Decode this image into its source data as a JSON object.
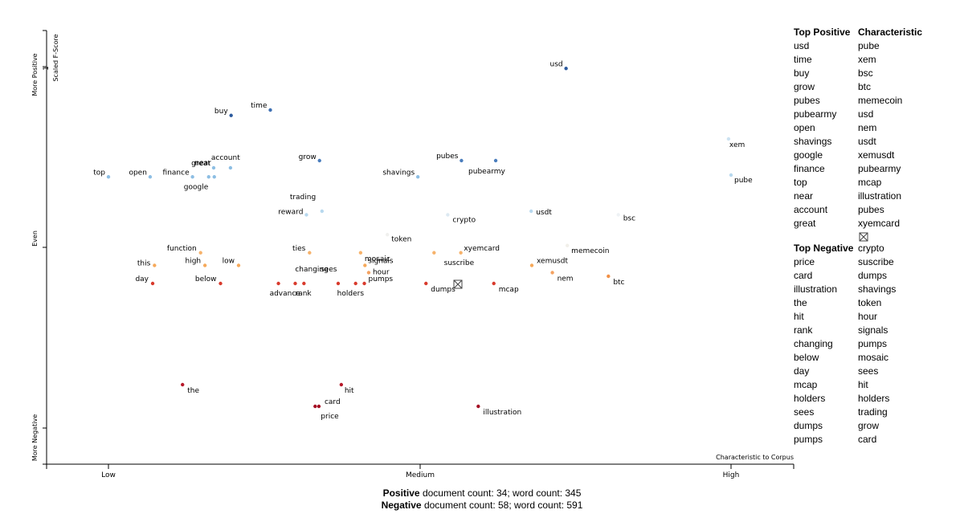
{
  "chart_data": {
    "type": "scatter",
    "xlabel": "Characteristic to Corpus",
    "ylabel": "Scaled F-Score",
    "x_ticks": [
      "Low",
      "Medium",
      "High"
    ],
    "y_ticks": {
      "top_value": "1"
    },
    "y_axis_words": [
      "More Positive",
      "Even",
      "More Negative"
    ],
    "xlim": [
      0,
      1
    ],
    "ylim": [
      0,
      1
    ],
    "points": [
      {
        "term": "usd",
        "x": 0.735,
        "y": 0.995,
        "color": "#2c5a9e"
      },
      {
        "term": "time",
        "x": 0.26,
        "y": 0.88,
        "color": "#3d6fb2"
      },
      {
        "term": "buy",
        "x": 0.197,
        "y": 0.865,
        "color": "#2c5a9e"
      },
      {
        "term": "grow",
        "x": 0.339,
        "y": 0.74,
        "color": "#4a7dbd"
      },
      {
        "term": "pubes",
        "x": 0.567,
        "y": 0.74,
        "color": "#4a7dbd"
      },
      {
        "term": "pubearmy",
        "x": 0.622,
        "y": 0.74,
        "color": "#4a7dbd"
      },
      {
        "term": "great",
        "x": 0.169,
        "y": 0.72,
        "color": "#8dbee3"
      },
      {
        "term": "near",
        "x": 0.17,
        "y": 0.695,
        "color": "#8dbee3"
      },
      {
        "term": "account",
        "x": 0.196,
        "y": 0.72,
        "color": "#8dbee3"
      },
      {
        "term": "top",
        "x": 0.0,
        "y": 0.695,
        "color": "#8dbee3"
      },
      {
        "term": "open",
        "x": 0.067,
        "y": 0.695,
        "color": "#8dbee3"
      },
      {
        "term": "finance",
        "x": 0.135,
        "y": 0.695,
        "color": "#8dbee3"
      },
      {
        "term": "google",
        "x": 0.161,
        "y": 0.695,
        "color": "#8dbee3"
      },
      {
        "term": "shavings",
        "x": 0.497,
        "y": 0.695,
        "color": "#8dbee3"
      },
      {
        "term": "trading",
        "x": 0.343,
        "y": 0.6,
        "color": "#b7d8ee"
      },
      {
        "term": "reward",
        "x": 0.318,
        "y": 0.59,
        "color": "#b7d8ee"
      },
      {
        "term": "crypto",
        "x": 0.545,
        "y": 0.59,
        "color": "#dde9f2"
      },
      {
        "term": "usdt",
        "x": 0.679,
        "y": 0.6,
        "color": "#b7d8ee"
      },
      {
        "term": "bsc",
        "x": 0.819,
        "y": 0.59,
        "color": "#eef2f5"
      },
      {
        "term": "xem",
        "x": 0.996,
        "y": 0.8,
        "color": "#cce2f1"
      },
      {
        "term": "pube",
        "x": 1.0,
        "y": 0.7,
        "color": "#b7d8ee"
      },
      {
        "term": "token",
        "x": 0.448,
        "y": 0.535,
        "color": "#f0f0ee"
      },
      {
        "term": "memecoin",
        "x": 0.737,
        "y": 0.505,
        "color": "#f1efe9"
      },
      {
        "term": "function",
        "x": 0.148,
        "y": 0.485,
        "color": "#f6b26b"
      },
      {
        "term": "ties",
        "x": 0.323,
        "y": 0.485,
        "color": "#f6b26b"
      },
      {
        "term": "mosaic",
        "x": 0.405,
        "y": 0.485,
        "color": "#f6b26b"
      },
      {
        "term": "xyemcard",
        "x": 0.523,
        "y": 0.485,
        "color": "#f6b26b"
      },
      {
        "term": "suscribe",
        "x": 0.566,
        "y": 0.485,
        "color": "#f6b26b"
      },
      {
        "term": "this",
        "x": 0.074,
        "y": 0.45,
        "color": "#f6a95a"
      },
      {
        "term": "high",
        "x": 0.155,
        "y": 0.45,
        "color": "#f6a95a"
      },
      {
        "term": "low",
        "x": 0.209,
        "y": 0.45,
        "color": "#f6a95a"
      },
      {
        "term": "signals",
        "x": 0.412,
        "y": 0.45,
        "color": "#f6a95a"
      },
      {
        "term": "xemusdt",
        "x": 0.68,
        "y": 0.45,
        "color": "#f6a95a"
      },
      {
        "term": "hour",
        "x": 0.418,
        "y": 0.43,
        "color": "#f4a261"
      },
      {
        "term": "nem",
        "x": 0.713,
        "y": 0.43,
        "color": "#f4a261"
      },
      {
        "term": "btc",
        "x": 0.803,
        "y": 0.42,
        "color": "#f29045"
      },
      {
        "term": "day",
        "x": 0.071,
        "y": 0.4,
        "color": "#d83a2c"
      },
      {
        "term": "below",
        "x": 0.18,
        "y": 0.4,
        "color": "#d83a2c"
      },
      {
        "term": "advance",
        "x": 0.273,
        "y": 0.4,
        "color": "#d83a2c"
      },
      {
        "term": "rank",
        "x": 0.3,
        "y": 0.4,
        "color": "#d83a2c"
      },
      {
        "term": "changing",
        "x": 0.314,
        "y": 0.4,
        "color": "#d83a2c"
      },
      {
        "term": "sees",
        "x": 0.369,
        "y": 0.4,
        "color": "#d83a2c"
      },
      {
        "term": "holders",
        "x": 0.397,
        "y": 0.4,
        "color": "#d83a2c"
      },
      {
        "term": "pumps",
        "x": 0.411,
        "y": 0.4,
        "color": "#d83a2c"
      },
      {
        "term": "dumps",
        "x": 0.51,
        "y": 0.4,
        "color": "#d83a2c"
      },
      {
        "term": "mcap",
        "x": 0.619,
        "y": 0.4,
        "color": "#d83a2c"
      },
      {
        "term": "the",
        "x": 0.119,
        "y": 0.12,
        "color": "#b7192a"
      },
      {
        "term": "hit",
        "x": 0.374,
        "y": 0.12,
        "color": "#b7192a"
      },
      {
        "term": "card",
        "x": 0.338,
        "y": 0.06,
        "color": "#a50f24"
      },
      {
        "term": "price",
        "x": 0.332,
        "y": 0.06,
        "color": "#a50f24"
      },
      {
        "term": "illustration",
        "x": 0.594,
        "y": 0.06,
        "color": "#a50f24"
      }
    ]
  },
  "star_marker": {
    "icon": "sparkle-icon",
    "color": "#7a2a6e"
  },
  "lists": {
    "top_positive": {
      "title": "Top Positive",
      "items": [
        "usd",
        "time",
        "buy",
        "grow",
        "pubes",
        "pubearmy",
        "open",
        "shavings",
        "google",
        "finance",
        "top",
        "near",
        "account",
        "great"
      ]
    },
    "top_negative": {
      "title": "Top Negative",
      "items": [
        "price",
        "card",
        "illustration",
        "the",
        "hit",
        "rank",
        "changing",
        "below",
        "day",
        "mcap",
        "holders",
        "sees",
        "dumps",
        "pumps"
      ]
    },
    "characteristic": {
      "title": "Characteristic",
      "items_top": [
        "pube",
        "xem",
        "bsc",
        "btc",
        "memecoin",
        "usd",
        "nem",
        "usdt",
        "xemusdt",
        "pubearmy",
        "mcap",
        "illustration",
        "pubes",
        "xyemcard"
      ],
      "icon": "sparkle-icon",
      "items_bottom": [
        "crypto",
        "suscribe",
        "dumps",
        "shavings",
        "token",
        "hour",
        "signals",
        "pumps",
        "mosaic",
        "sees",
        "hit",
        "holders",
        "trading",
        "grow",
        "card"
      ]
    }
  },
  "footer": {
    "positive_label": "Positive",
    "positive_text": " document count: 34; word count: 345",
    "negative_label": "Negative",
    "negative_text": " document count: 58; word count: 591"
  }
}
